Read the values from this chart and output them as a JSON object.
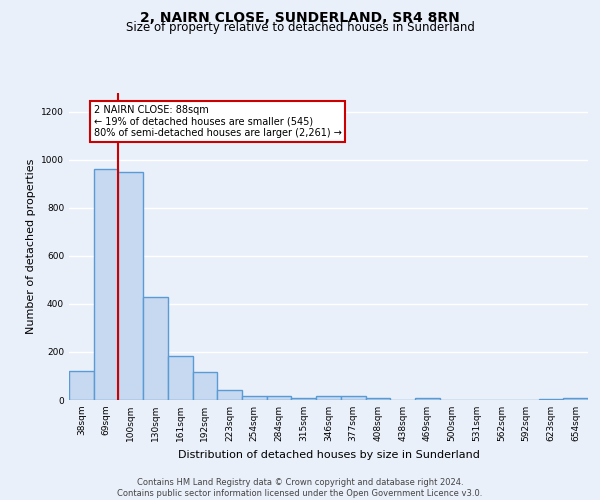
{
  "title": "2, NAIRN CLOSE, SUNDERLAND, SR4 8RN",
  "subtitle": "Size of property relative to detached houses in Sunderland",
  "xlabel": "Distribution of detached houses by size in Sunderland",
  "ylabel": "Number of detached properties",
  "categories": [
    "38sqm",
    "69sqm",
    "100sqm",
    "130sqm",
    "161sqm",
    "192sqm",
    "223sqm",
    "254sqm",
    "284sqm",
    "315sqm",
    "346sqm",
    "377sqm",
    "408sqm",
    "438sqm",
    "469sqm",
    "500sqm",
    "531sqm",
    "562sqm",
    "592sqm",
    "623sqm",
    "654sqm"
  ],
  "values": [
    122,
    960,
    948,
    430,
    185,
    115,
    42,
    18,
    15,
    10,
    15,
    15,
    8,
    0,
    10,
    0,
    0,
    0,
    0,
    5,
    10
  ],
  "bar_color": "#c7d9f0",
  "bar_edge_color": "#5b9bd5",
  "bar_edge_width": 1.0,
  "redline_x": 1.5,
  "ylim": [
    0,
    1280
  ],
  "yticks": [
    0,
    200,
    400,
    600,
    800,
    1000,
    1200
  ],
  "annotation_text": "2 NAIRN CLOSE: 88sqm\n← 19% of detached houses are smaller (545)\n80% of semi-detached houses are larger (2,261) →",
  "footer": "Contains HM Land Registry data © Crown copyright and database right 2024.\nContains public sector information licensed under the Open Government Licence v3.0.",
  "bg_color": "#eaf0fa",
  "grid_color": "#ffffff",
  "title_fontsize": 10,
  "subtitle_fontsize": 8.5,
  "tick_fontsize": 6.5,
  "ylabel_fontsize": 8,
  "xlabel_fontsize": 8,
  "footer_fontsize": 6,
  "annot_fontsize": 7
}
